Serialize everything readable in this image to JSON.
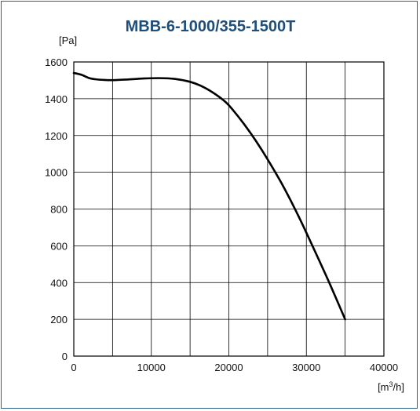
{
  "chart_data": {
    "type": "line",
    "title": "MBB-6-1000/355-1500T",
    "ylabel": "[Pa]",
    "xlabel_base": "[m",
    "xlabel_sup": "3",
    "xlabel_tail": "/h]",
    "xlim": [
      0,
      40000
    ],
    "ylim": [
      0,
      1600
    ],
    "x_ticks": [
      0,
      10000,
      20000,
      30000,
      40000
    ],
    "y_ticks": [
      0,
      200,
      400,
      600,
      800,
      1000,
      1200,
      1400,
      1600
    ],
    "x_tick_labels": [
      "0",
      "10000",
      "20000",
      "30000",
      "40000"
    ],
    "y_tick_labels": [
      "0",
      "200",
      "400",
      "600",
      "800",
      "1000",
      "1200",
      "1400",
      "1600"
    ],
    "grid": true,
    "x_grid_step": 5000,
    "series": [
      {
        "color": "#000000",
        "x": [
          0,
          1000,
          2000,
          3000,
          4000,
          5000,
          7000,
          9000,
          11000,
          13000,
          15000,
          16500,
          18000,
          19500,
          20500,
          22000,
          23500,
          25000,
          27000,
          29000,
          31000,
          33000,
          35000
        ],
        "y": [
          1540,
          1530,
          1512,
          1505,
          1502,
          1501,
          1505,
          1510,
          1512,
          1508,
          1492,
          1468,
          1432,
          1385,
          1340,
          1260,
          1170,
          1070,
          925,
          760,
          580,
          395,
          200
        ]
      }
    ]
  }
}
